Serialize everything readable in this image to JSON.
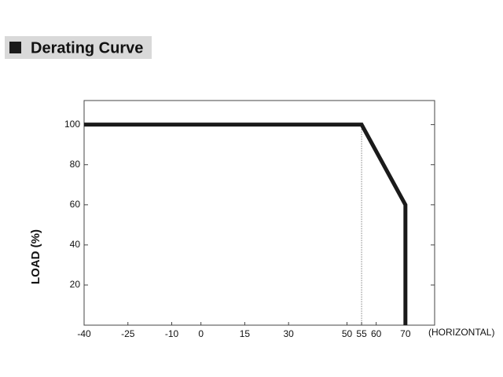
{
  "chart_data": {
    "type": "line",
    "title": "Derating Curve",
    "ylabel": "LOAD (%)",
    "xlabel": "(HORIZONTAL)",
    "x": [
      -40,
      55,
      70,
      70
    ],
    "values": [
      100,
      100,
      60,
      0
    ],
    "color": "#1a1a1a",
    "xlim": [
      -40,
      80
    ],
    "xticks": [
      -40,
      -25,
      -10,
      0,
      15,
      30,
      50,
      55,
      60,
      70
    ],
    "ylim": [
      0,
      112
    ],
    "yticks": [
      20,
      40,
      60,
      80,
      100
    ]
  }
}
